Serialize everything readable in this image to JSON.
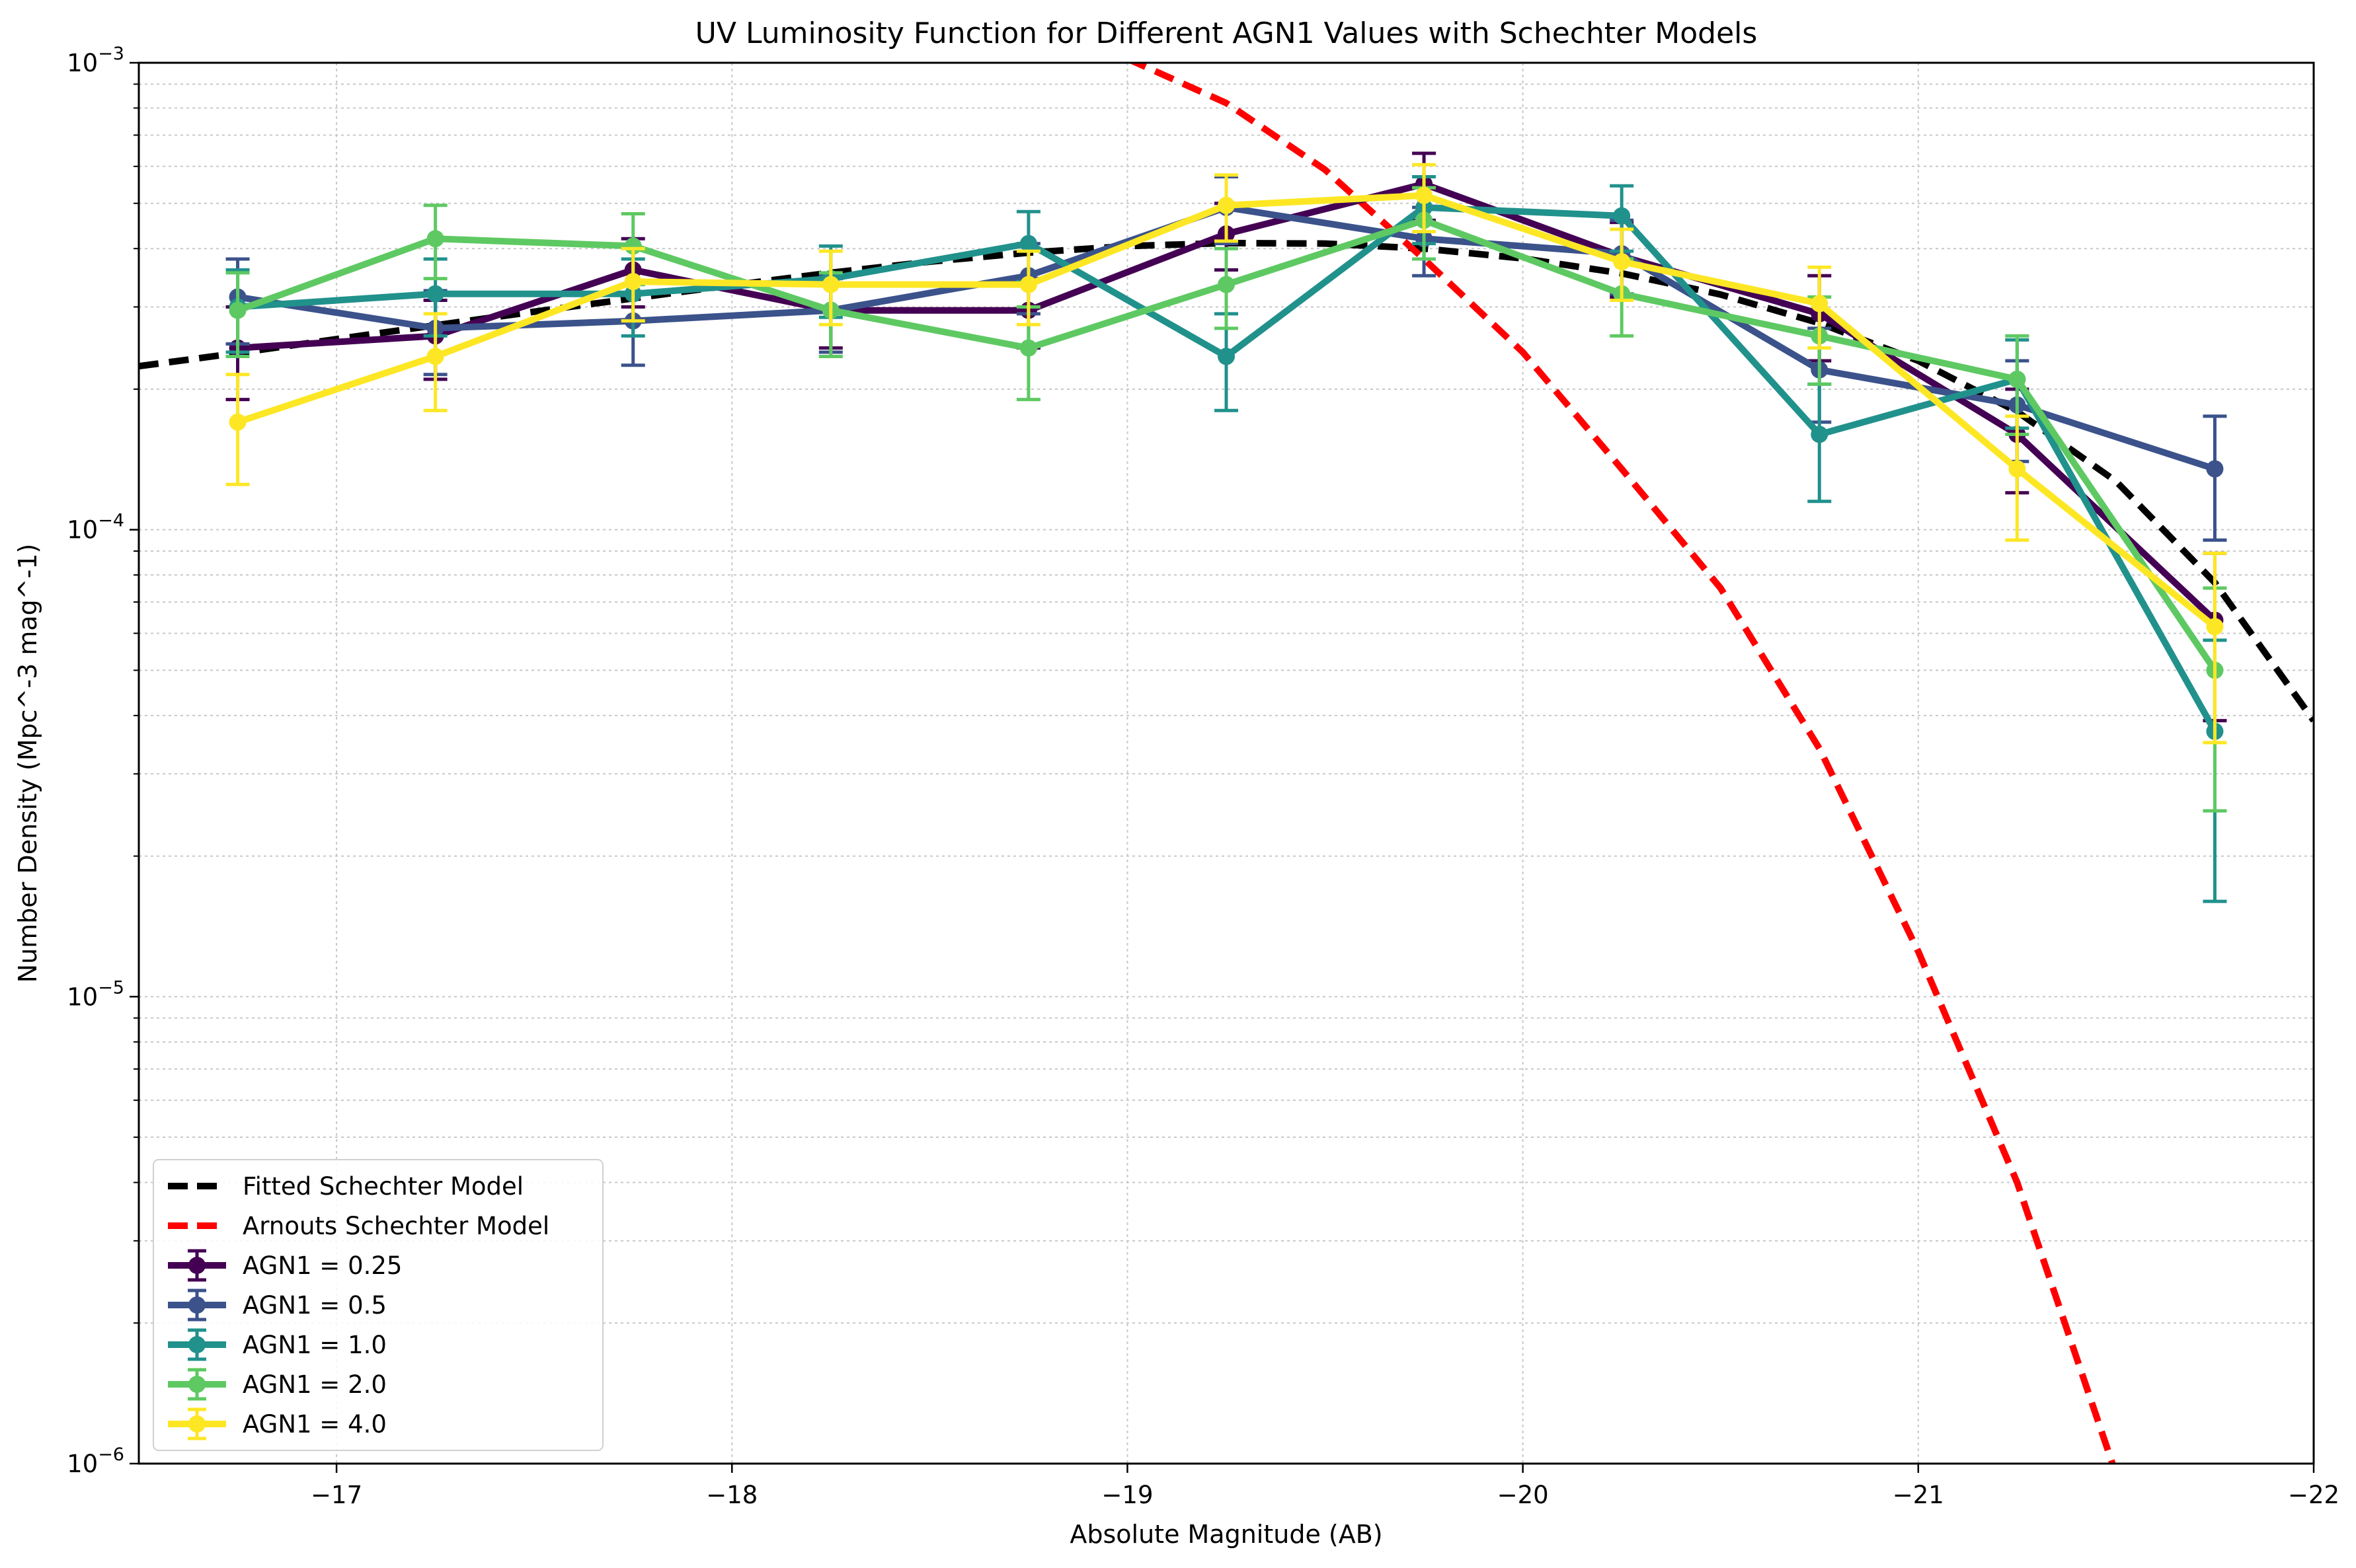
{
  "chart_data": {
    "type": "line",
    "title": "UV Luminosity Function for Different AGN1 Values with Schechter Models",
    "xlabel": "Absolute Magnitude (AB)",
    "ylabel": "Number Density (Mpc^-3 mag^-1)",
    "xlim": [
      -16.5,
      -22
    ],
    "x_inverted": true,
    "ylim": [
      1e-06,
      0.001
    ],
    "yscale": "log",
    "grid": true,
    "legend_position": "lower-left",
    "x_ticks": [
      {
        "value": -17,
        "label": "−17"
      },
      {
        "value": -18,
        "label": "−18"
      },
      {
        "value": -19,
        "label": "−19"
      },
      {
        "value": -20,
        "label": "−20"
      },
      {
        "value": -21,
        "label": "−21"
      },
      {
        "value": -22,
        "label": "−22"
      }
    ],
    "y_ticks": [
      {
        "value": 0.001,
        "base": "10",
        "exp": "−3"
      },
      {
        "value": 0.0001,
        "base": "10",
        "exp": "−4"
      },
      {
        "value": 1e-05,
        "base": "10",
        "exp": "−5"
      },
      {
        "value": 1e-06,
        "base": "10",
        "exp": "−6"
      }
    ],
    "models": [
      {
        "name": "Fitted Schechter Model",
        "color": "#000000",
        "style": "dashed",
        "x": [
          -16.5,
          -16.75,
          -17.0,
          -17.25,
          -17.5,
          -17.75,
          -18.0,
          -18.25,
          -18.5,
          -18.75,
          -19.0,
          -19.25,
          -19.5,
          -19.75,
          -20.0,
          -20.25,
          -20.5,
          -20.75,
          -21.0,
          -21.25,
          -21.5,
          -21.75,
          -22.0
        ],
        "y": [
          0.000224,
          0.000239,
          0.000256,
          0.000274,
          0.000293,
          0.000313,
          0.000334,
          0.000355,
          0.000375,
          0.000392,
          0.000405,
          0.000411,
          0.00041,
          0.0004,
          0.000381,
          0.000354,
          0.000319,
          0.000277,
          0.00023,
          0.000179,
          0.000127,
          7.7e-05,
          3.9e-05
        ]
      },
      {
        "name": "Arnouts Schechter Model",
        "color": "#ff0000",
        "style": "dashed",
        "x": [
          -19.0,
          -19.25,
          -19.5,
          -19.75,
          -20.0,
          -20.25,
          -20.5,
          -20.75,
          -21.0,
          -21.25,
          -21.5
        ],
        "y": [
          0.00102,
          0.00082,
          0.00059,
          0.00038,
          0.00024,
          0.000135,
          7.5e-05,
          3.4e-05,
          1.25e-05,
          4e-06,
          9.5e-07
        ]
      }
    ],
    "x": [
      -16.75,
      -17.25,
      -17.75,
      -18.25,
      -18.75,
      -19.25,
      -19.75,
      -20.25,
      -20.75,
      -21.25,
      -21.75
    ],
    "series": [
      {
        "name": "AGN1 = 0.25",
        "color": "#440154",
        "values": [
          0.000245,
          0.00026,
          0.00036,
          0.000295,
          0.000295,
          0.00043,
          0.00055,
          0.000385,
          0.00029,
          0.00016,
          6.4e-05
        ],
        "errors": [
          5.5e-05,
          5e-05,
          6e-05,
          5e-05,
          5e-05,
          7e-05,
          9e-05,
          7e-05,
          6e-05,
          4e-05,
          2.5e-05
        ]
      },
      {
        "name": "AGN1 = 0.5",
        "color": "#3b528b",
        "values": [
          0.000315,
          0.00027,
          0.00028,
          0.000295,
          0.00035,
          0.00049,
          0.00042,
          0.00039,
          0.00022,
          0.000185,
          0.000135
        ],
        "errors": [
          6.5e-05,
          5.5e-05,
          5.5e-05,
          5.5e-05,
          6e-05,
          8e-05,
          7e-05,
          7e-05,
          5e-05,
          4.5e-05,
          4e-05
        ]
      },
      {
        "name": "AGN1 = 1.0",
        "color": "#21918c",
        "values": [
          0.0003,
          0.00032,
          0.00032,
          0.000345,
          0.00041,
          0.000235,
          0.00049,
          0.00047,
          0.00016,
          0.00021,
          3.7e-05
        ],
        "errors": [
          6e-05,
          6e-05,
          6e-05,
          6e-05,
          7e-05,
          5.5e-05,
          8e-05,
          7.5e-05,
          4.5e-05,
          4.5e-05,
          2.1e-05
        ]
      },
      {
        "name": "AGN1 = 2.0",
        "color": "#5ec962",
        "values": [
          0.000295,
          0.00042,
          0.000405,
          0.000295,
          0.000245,
          0.000335,
          0.00046,
          0.00032,
          0.00026,
          0.00021,
          5e-05
        ],
        "errors": [
          6e-05,
          7.5e-05,
          7e-05,
          6e-05,
          5.5e-05,
          6.5e-05,
          8e-05,
          6e-05,
          5.5e-05,
          5e-05,
          2.5e-05
        ]
      },
      {
        "name": "AGN1 = 4.0",
        "color": "#fde725",
        "values": [
          0.00017,
          0.000235,
          0.00034,
          0.000335,
          0.000335,
          0.000495,
          0.00052,
          0.000375,
          0.000305,
          0.000135,
          6.2e-05
        ],
        "errors": [
          4.5e-05,
          5.5e-05,
          6e-05,
          6e-05,
          6e-05,
          8e-05,
          8.5e-05,
          6.5e-05,
          6e-05,
          4e-05,
          2.7e-05
        ]
      }
    ]
  }
}
